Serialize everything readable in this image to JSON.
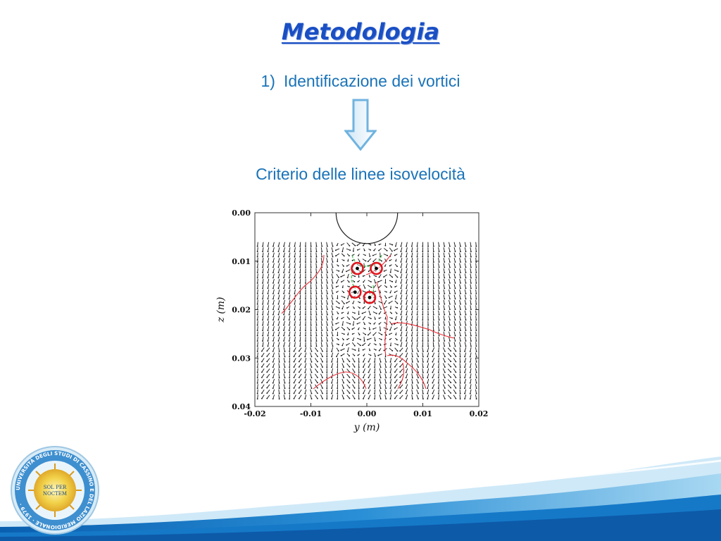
{
  "slide": {
    "title": "Metodologia",
    "item_number": "1)",
    "item_text": "Identificazione dei vortici",
    "criterion": "Criterio delle linee isovelocità"
  },
  "chart_data": {
    "type": "vector-field",
    "xlabel": "y (m)",
    "ylabel": "z (m)",
    "xlim": [
      -0.02,
      0.02
    ],
    "ylim": [
      0.0,
      0.04
    ],
    "x_ticks": [
      "-0.02",
      "-0.01",
      "0.00",
      "0.01",
      "0.02"
    ],
    "y_ticks": [
      "0.00",
      "0.01",
      "0.02",
      "0.03",
      "0.04"
    ],
    "vortex_centers": [
      {
        "y": -0.0017,
        "z": 0.0115
      },
      {
        "y": 0.0017,
        "z": 0.0115
      },
      {
        "y": -0.0021,
        "z": 0.0164
      },
      {
        "y": 0.0005,
        "z": 0.0175
      }
    ],
    "circle_center": {
      "y": 0.0,
      "z": 0.0
    },
    "circle_radius": 0.0055,
    "grid": false
  },
  "logo": {
    "ring_text": "UNIVERSITÀ DEGLI STUDI DI CASSINO E DEL LAZIO MERIDIONALE · 1979 ·",
    "motto_1": "SOL PER",
    "motto_2": "NOCTEM"
  },
  "colors": {
    "title": "#1a4fc4",
    "text": "#1a73b8",
    "arrow": "#6fb3df",
    "contour_red": "#e8333a",
    "contour_green": "#3cbf4a"
  }
}
